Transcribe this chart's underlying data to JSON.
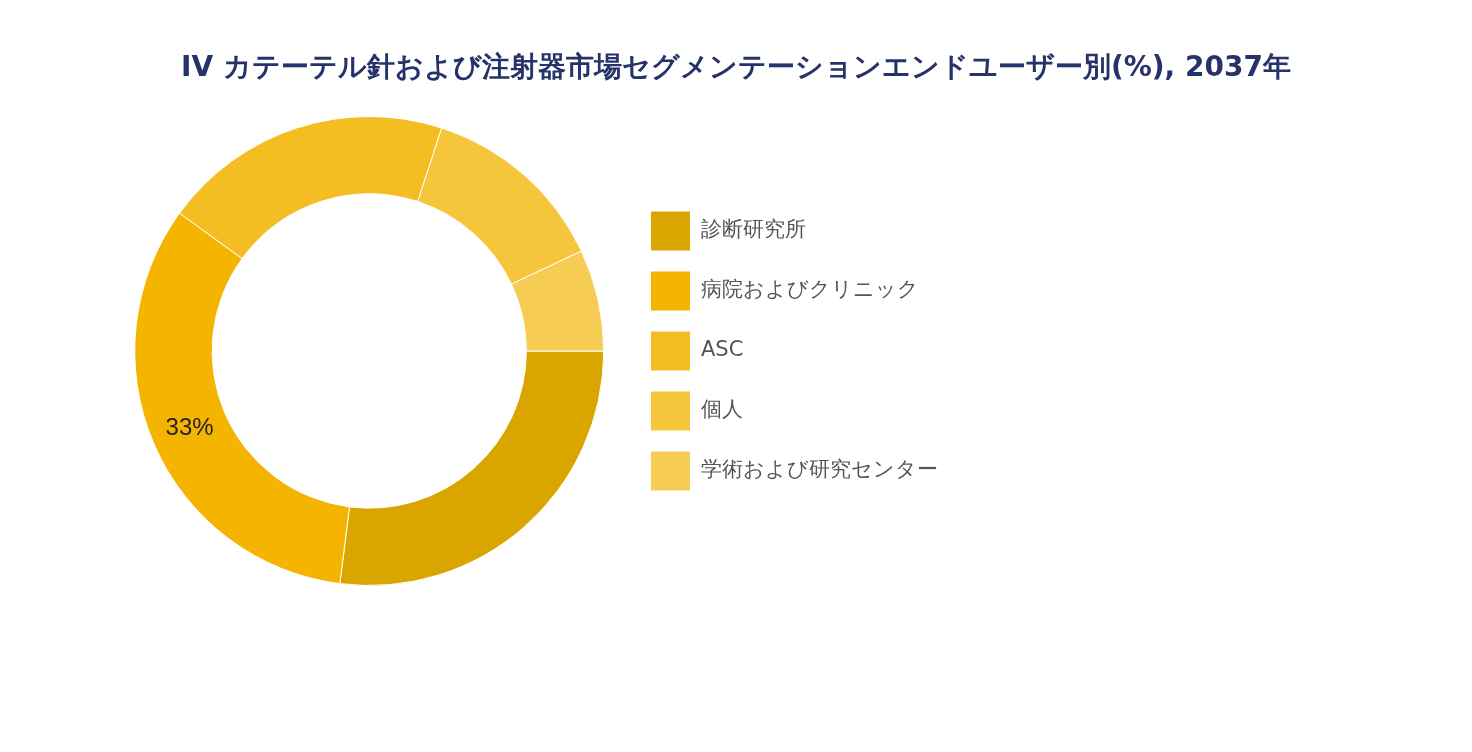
{
  "chart_data": {
    "type": "donut",
    "title": "IV カテーテル針および注射器市場セグメンテーションエンドユーザー別(%), 2037年",
    "categories": [
      "診断研究所",
      "病院およびクリニック",
      "ASC",
      "個人",
      "学術および研究センター"
    ],
    "values": [
      27,
      33,
      20,
      13,
      7
    ],
    "colors": [
      "#dba500",
      "#f4b400",
      "#f4bd22",
      "#f5c53b",
      "#f6cc55"
    ],
    "value_labels": [
      null,
      "33%",
      null,
      null,
      null
    ],
    "legend": "right"
  }
}
